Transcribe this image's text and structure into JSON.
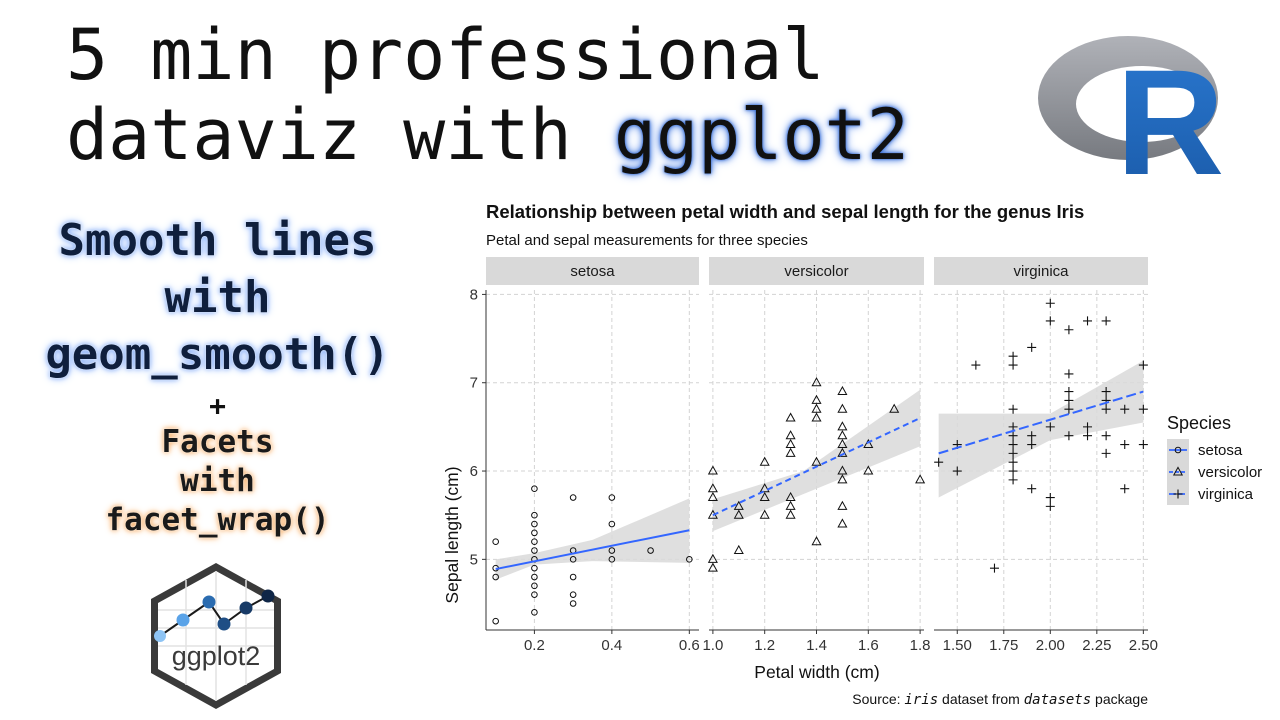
{
  "headline": {
    "line1": "5 min professional",
    "line2_prefix": "dataviz with",
    "line2_highlight": "ggplot2"
  },
  "left_panel": {
    "blue_lines": [
      "Smooth lines",
      "with",
      "geom_smooth()"
    ],
    "plus": "+",
    "orange_lines": [
      "Facets",
      "with",
      "facet_wrap()"
    ]
  },
  "logos": {
    "r_logo_text": "R",
    "hex_logo_text": "ggplot2"
  },
  "colors": {
    "smooth_line": "#3366FF",
    "ribbon": "#D9D9D9",
    "strip": "#D9D9D9",
    "grid": "#D3D3D3",
    "r_blue": "#1f65b7",
    "r_grey": "#8c8d92",
    "hex_blue": "#2b6cb0"
  },
  "chart_data": {
    "type": "scatter",
    "title": "Relationship between petal width and sepal length for the genus Iris",
    "subtitle": "Petal and sepal measurements for three species",
    "xlabel": "Petal width (cm)",
    "ylabel": "Sepal length (cm)",
    "caption_parts": [
      "Source: ",
      "iris",
      " dataset from ",
      "datasets",
      " package"
    ],
    "grid": true,
    "grid_style": "dashed",
    "legend_title": "Species",
    "legend_position": "right",
    "y_ticks": [
      "5",
      "6",
      "7",
      "8"
    ],
    "facets": [
      {
        "strip": "setosa",
        "shape": "circle",
        "linetype": "solid",
        "xlim": [
          0.075,
          0.625
        ],
        "ylim": [
          4.2,
          8.05
        ],
        "x_ticks": [
          0.2,
          0.4,
          0.6
        ],
        "x_tick_labels": [
          "0.2",
          "0.4",
          "0.6"
        ],
        "points": [
          [
            0.1,
            4.3
          ],
          [
            0.1,
            4.8
          ],
          [
            0.1,
            4.9
          ],
          [
            0.1,
            5.2
          ],
          [
            0.2,
            4.4
          ],
          [
            0.2,
            4.6
          ],
          [
            0.2,
            4.7
          ],
          [
            0.2,
            4.8
          ],
          [
            0.2,
            4.9
          ],
          [
            0.2,
            5.0
          ],
          [
            0.2,
            5.1
          ],
          [
            0.2,
            5.2
          ],
          [
            0.2,
            5.3
          ],
          [
            0.2,
            5.4
          ],
          [
            0.2,
            5.5
          ],
          [
            0.2,
            5.8
          ],
          [
            0.3,
            4.5
          ],
          [
            0.3,
            4.6
          ],
          [
            0.3,
            4.8
          ],
          [
            0.3,
            5.0
          ],
          [
            0.3,
            5.1
          ],
          [
            0.3,
            5.7
          ],
          [
            0.4,
            5.0
          ],
          [
            0.4,
            5.1
          ],
          [
            0.4,
            5.4
          ],
          [
            0.4,
            5.7
          ],
          [
            0.5,
            5.1
          ],
          [
            0.6,
            5.0
          ]
        ],
        "smooth": {
          "x": [
            0.1,
            0.6
          ],
          "y": [
            4.89,
            5.33
          ]
        },
        "ribbon": {
          "x": [
            0.1,
            0.2,
            0.35,
            0.6
          ],
          "upper": [
            5.0,
            5.07,
            5.22,
            5.69
          ],
          "lower": [
            4.77,
            4.94,
            4.98,
            4.96
          ]
        }
      },
      {
        "strip": "versicolor",
        "shape": "triangle",
        "linetype": "dashed",
        "xlim": [
          0.985,
          1.815
        ],
        "ylim": [
          4.2,
          8.05
        ],
        "x_ticks": [
          1.0,
          1.2,
          1.4,
          1.6,
          1.8
        ],
        "x_tick_labels": [
          "1.0",
          "1.2",
          "1.4",
          "1.6",
          "1.8"
        ],
        "points": [
          [
            1.0,
            4.9
          ],
          [
            1.0,
            5.0
          ],
          [
            1.0,
            5.5
          ],
          [
            1.0,
            5.7
          ],
          [
            1.0,
            5.8
          ],
          [
            1.0,
            6.0
          ],
          [
            1.1,
            5.1
          ],
          [
            1.1,
            5.5
          ],
          [
            1.1,
            5.6
          ],
          [
            1.2,
            5.5
          ],
          [
            1.2,
            5.7
          ],
          [
            1.2,
            5.8
          ],
          [
            1.2,
            6.1
          ],
          [
            1.3,
            5.5
          ],
          [
            1.3,
            5.6
          ],
          [
            1.3,
            5.7
          ],
          [
            1.3,
            6.2
          ],
          [
            1.3,
            6.3
          ],
          [
            1.3,
            6.4
          ],
          [
            1.3,
            6.6
          ],
          [
            1.4,
            5.2
          ],
          [
            1.4,
            6.1
          ],
          [
            1.4,
            6.6
          ],
          [
            1.4,
            6.7
          ],
          [
            1.4,
            6.8
          ],
          [
            1.4,
            7.0
          ],
          [
            1.5,
            5.4
          ],
          [
            1.5,
            5.6
          ],
          [
            1.5,
            5.9
          ],
          [
            1.5,
            6.0
          ],
          [
            1.5,
            6.2
          ],
          [
            1.5,
            6.3
          ],
          [
            1.5,
            6.4
          ],
          [
            1.5,
            6.5
          ],
          [
            1.5,
            6.7
          ],
          [
            1.5,
            6.9
          ],
          [
            1.6,
            6.0
          ],
          [
            1.6,
            6.3
          ],
          [
            1.7,
            6.7
          ],
          [
            1.8,
            5.9
          ]
        ],
        "smooth": {
          "x": [
            1.0,
            1.8
          ],
          "y": [
            5.5,
            6.6
          ]
        },
        "ribbon": {
          "x": [
            1.0,
            1.35,
            1.8
          ],
          "upper": [
            5.68,
            6.0,
            6.92
          ],
          "lower": [
            5.32,
            5.74,
            6.28
          ]
        }
      },
      {
        "strip": "virginica",
        "shape": "plus",
        "linetype": "longdash",
        "xlim": [
          1.375,
          2.525
        ],
        "ylim": [
          4.2,
          8.05
        ],
        "x_ticks": [
          1.5,
          1.75,
          2.0,
          2.25,
          2.5
        ],
        "x_tick_labels": [
          "1.50",
          "1.75",
          "2.00",
          "2.25",
          "2.50"
        ],
        "points": [
          [
            1.4,
            6.1
          ],
          [
            1.5,
            6.0
          ],
          [
            1.5,
            6.3
          ],
          [
            1.6,
            7.2
          ],
          [
            1.7,
            4.9
          ],
          [
            1.8,
            5.9
          ],
          [
            1.8,
            6.0
          ],
          [
            1.8,
            6.1
          ],
          [
            1.8,
            6.2
          ],
          [
            1.8,
            6.3
          ],
          [
            1.8,
            6.4
          ],
          [
            1.8,
            6.5
          ],
          [
            1.8,
            6.7
          ],
          [
            1.8,
            7.2
          ],
          [
            1.8,
            7.3
          ],
          [
            1.9,
            5.8
          ],
          [
            1.9,
            6.3
          ],
          [
            1.9,
            6.4
          ],
          [
            1.9,
            7.4
          ],
          [
            2.0,
            5.6
          ],
          [
            2.0,
            5.7
          ],
          [
            2.0,
            6.5
          ],
          [
            2.0,
            7.7
          ],
          [
            2.0,
            7.9
          ],
          [
            2.1,
            6.4
          ],
          [
            2.1,
            6.7
          ],
          [
            2.1,
            6.8
          ],
          [
            2.1,
            6.9
          ],
          [
            2.1,
            7.1
          ],
          [
            2.1,
            7.6
          ],
          [
            2.2,
            6.4
          ],
          [
            2.2,
            6.5
          ],
          [
            2.2,
            7.7
          ],
          [
            2.3,
            6.2
          ],
          [
            2.3,
            6.4
          ],
          [
            2.3,
            6.7
          ],
          [
            2.3,
            6.8
          ],
          [
            2.3,
            6.9
          ],
          [
            2.3,
            7.7
          ],
          [
            2.4,
            5.8
          ],
          [
            2.4,
            6.3
          ],
          [
            2.4,
            6.7
          ],
          [
            2.5,
            6.3
          ],
          [
            2.5,
            6.7
          ],
          [
            2.5,
            7.2
          ]
        ],
        "smooth": {
          "x": [
            1.4,
            2.5
          ],
          "y": [
            6.2,
            6.9
          ]
        },
        "ribbon": {
          "x": [
            1.4,
            2.0,
            2.5
          ],
          "upper": [
            6.65,
            6.65,
            7.25
          ],
          "lower": [
            5.7,
            6.35,
            6.55
          ]
        }
      }
    ],
    "legend": [
      {
        "label": "setosa",
        "shape": "circle",
        "linetype": "solid"
      },
      {
        "label": "versicolor",
        "shape": "triangle",
        "linetype": "dashed"
      },
      {
        "label": "virginica",
        "shape": "plus",
        "linetype": "longdash"
      }
    ]
  }
}
